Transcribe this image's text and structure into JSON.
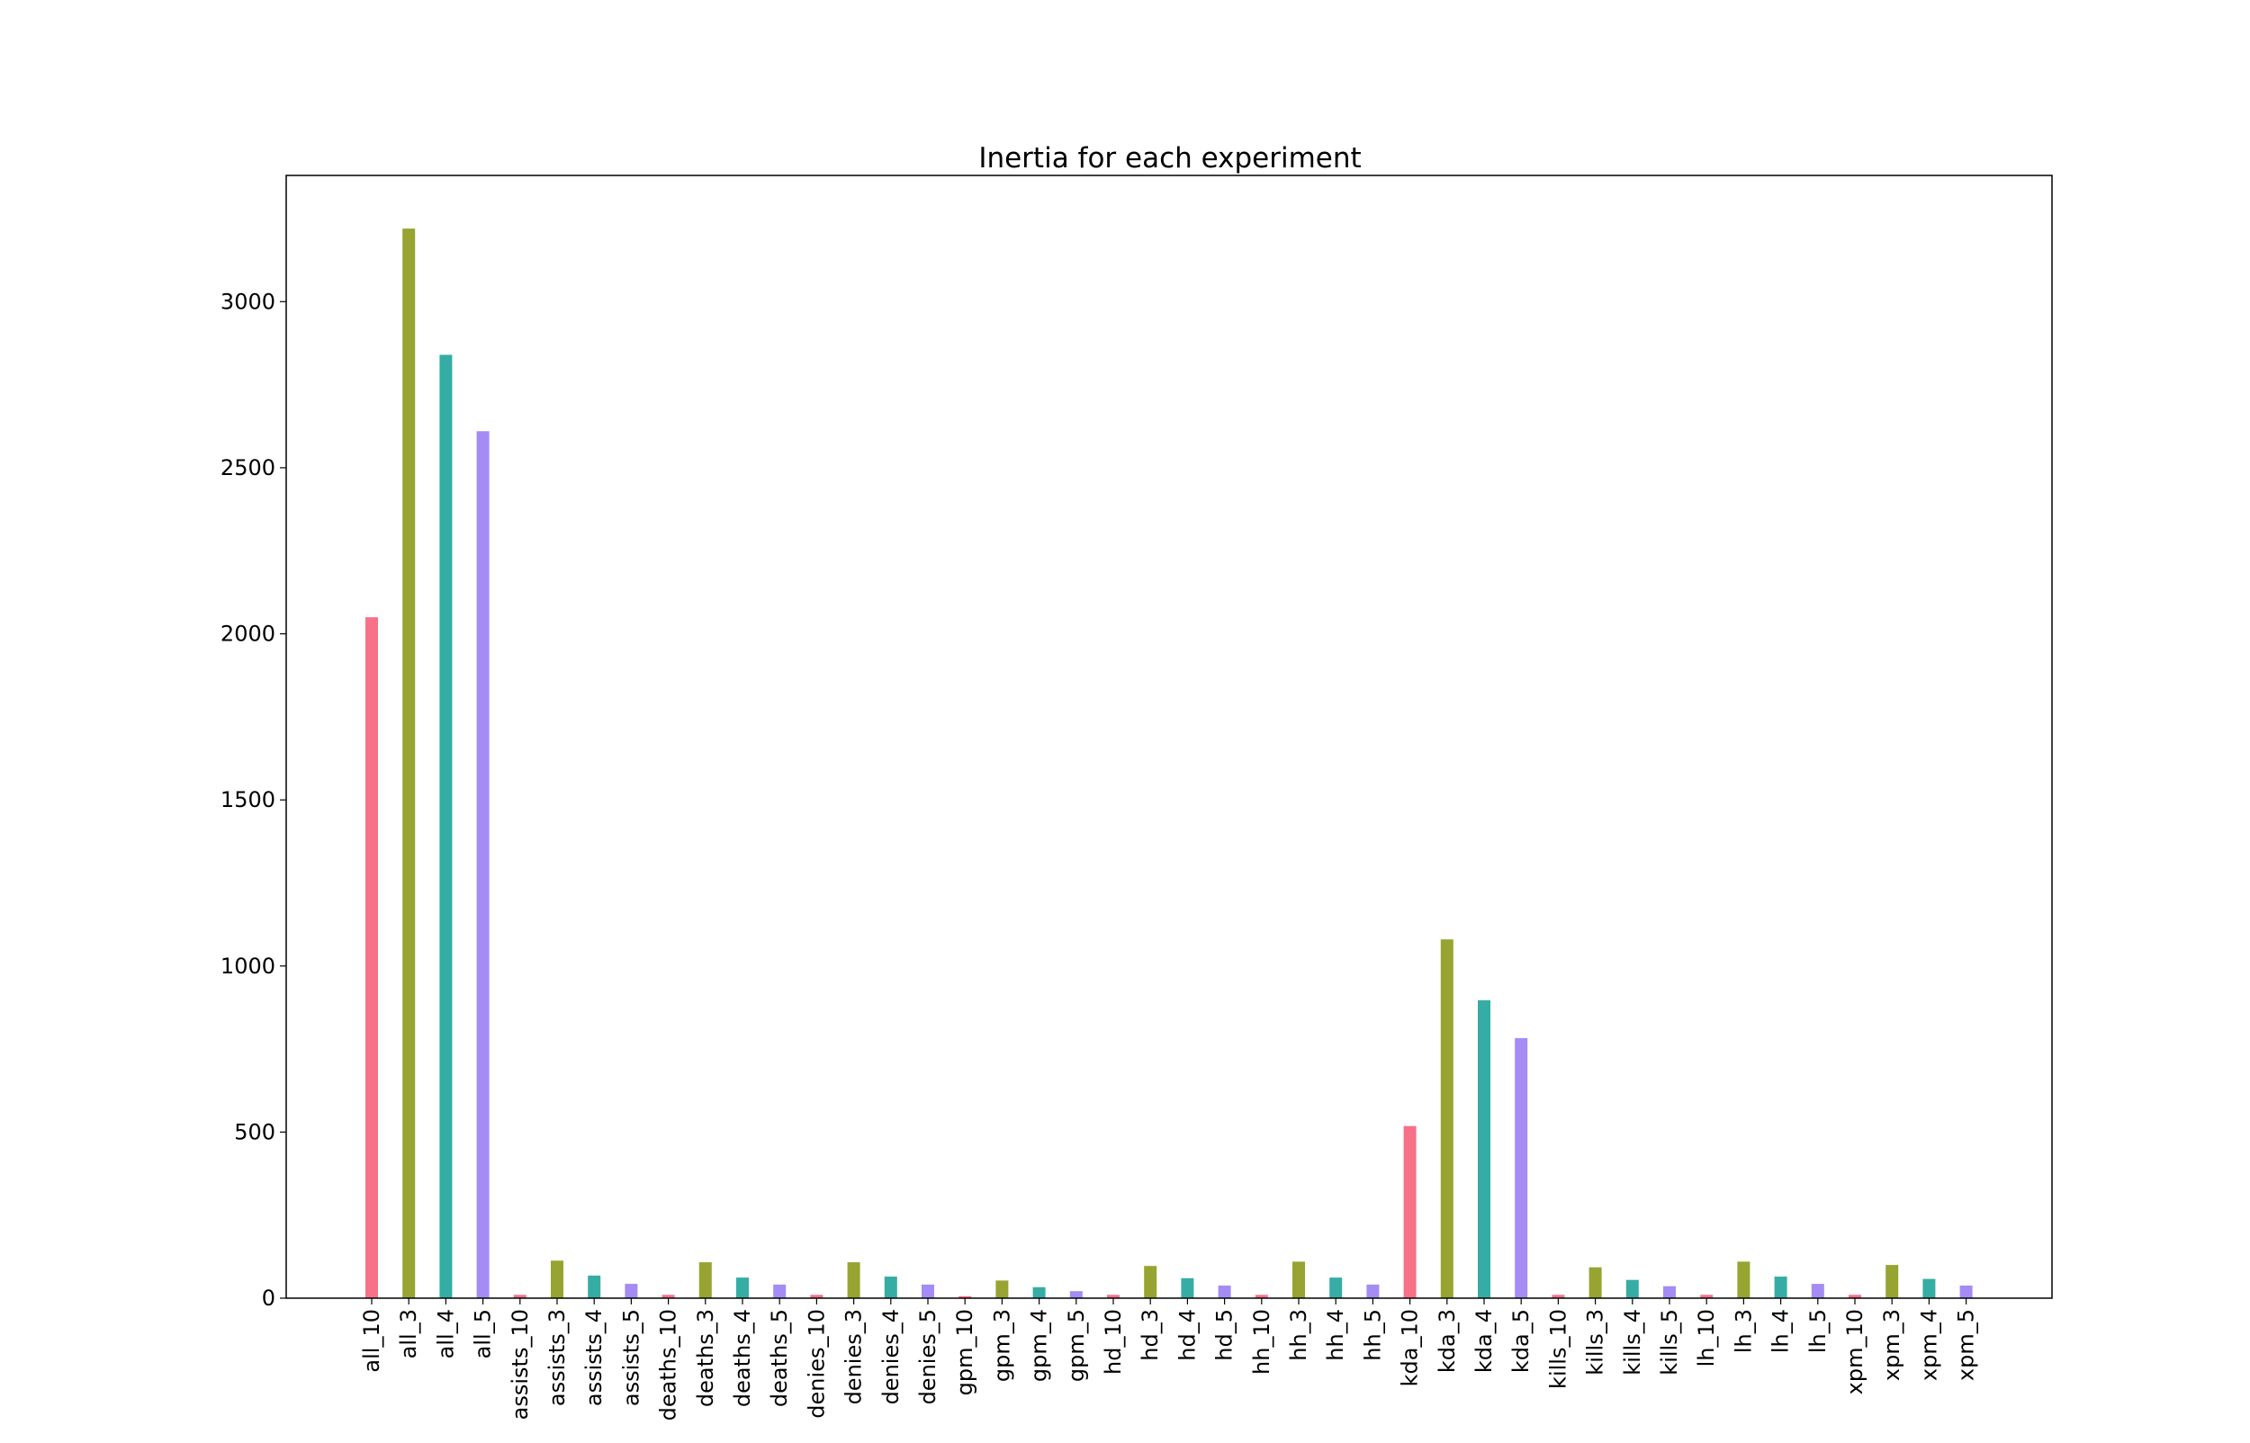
{
  "chart_data": {
    "type": "bar",
    "title": "Inertia for each experiment",
    "xlabel": "",
    "ylabel": "",
    "ylim": [
      0,
      3380
    ],
    "yticks": [
      0,
      500,
      1000,
      1500,
      2000,
      2500,
      3000
    ],
    "grid": false,
    "legend": "none",
    "categories": [
      "all_10",
      "all_3",
      "all_4",
      "all_5",
      "assists_10",
      "assists_3",
      "assists_4",
      "assists_5",
      "deaths_10",
      "deaths_3",
      "deaths_4",
      "deaths_5",
      "denies_10",
      "denies_3",
      "denies_4",
      "denies_5",
      "gpm_10",
      "gpm_3",
      "gpm_4",
      "gpm_5",
      "hd_10",
      "hd_3",
      "hd_4",
      "hd_5",
      "hh_10",
      "hh_3",
      "hh_4",
      "hh_5",
      "kda_10",
      "kda_3",
      "kda_4",
      "kda_5",
      "kills_10",
      "kills_3",
      "kills_4",
      "kills_5",
      "lh_10",
      "lh_3",
      "lh_4",
      "lh_5",
      "xpm_10",
      "xpm_3",
      "xpm_4",
      "xpm_5"
    ],
    "values": [
      2050,
      3220,
      2840,
      2610,
      10,
      113,
      68,
      43,
      10,
      108,
      62,
      41,
      10,
      108,
      65,
      41,
      6,
      53,
      33,
      21,
      10,
      97,
      60,
      38,
      10,
      110,
      62,
      41,
      518,
      1080,
      897,
      783,
      10,
      93,
      55,
      36,
      10,
      110,
      65,
      43,
      10,
      100,
      58,
      38
    ],
    "colors": [
      "#f77189",
      "#97a431",
      "#36ada4",
      "#a48cf4"
    ]
  }
}
